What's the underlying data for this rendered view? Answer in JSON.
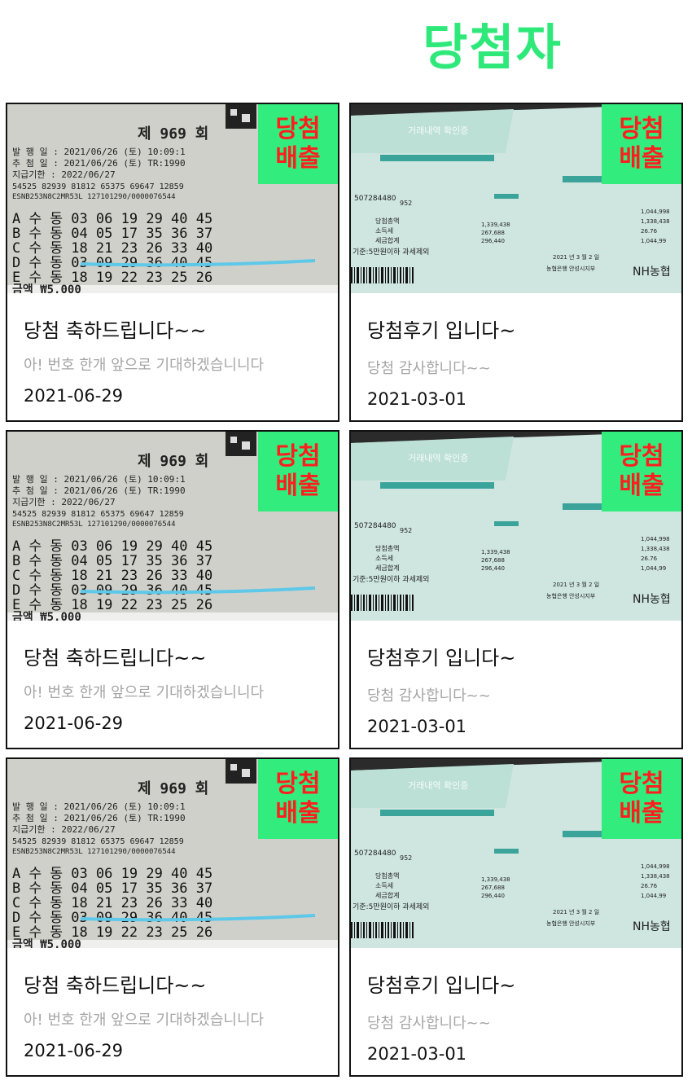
{
  "page": {
    "title": "당첨자"
  },
  "colors": {
    "accent": "#2ee97a",
    "badge_bg": "#33ec7e",
    "badge_text": "#ff1d1d"
  },
  "ticket_text": {
    "round": "제 969 회",
    "issue": "발 행 일 : 2021/06/26 (토) 10:09:1",
    "draw": "추 첨 일 : 2021/06/26 (토) TR:1990",
    "deadline": "지급기한 : 2022/06/27",
    "codes": "54525 82939 81812 65375 69647 12859",
    "code2": "ESNB253N8C2MR53L     127101290/0000076544",
    "rows": [
      "A 수 동 03 06 19 29 40 45",
      "B 수 동 04 05 17 35 36 37",
      "C 수 동 18 21 23 26 33 40",
      "D 수 동 03 09 29 36 40 45",
      "E 수 동 18 19 22 23 25 26"
    ],
    "bottom": "금액        ₩5,000"
  },
  "receipt_text": {
    "header": "거래내역 확인증",
    "num": "952",
    "acct": "507284480",
    "rows": [
      "당첨총액",
      "소득세",
      "세금합계"
    ],
    "vals": [
      "1,339,438",
      "267,688",
      "296,440"
    ],
    "right": [
      "1,044,998",
      "1,338,438",
      "26.76",
      "1,044,99"
    ],
    "note": "기준:5만원이하 과세제외",
    "date": "2021 년 3 월 2 일",
    "bank": "농협은행 안성시지부",
    "logo": "NH농협"
  },
  "cards": [
    {
      "badge_line1": "당첨",
      "badge_line2": "배출",
      "title": "당첨 축하드립니다~~",
      "desc": "아! 번호 한개 앞으로 기대하겠습니니다",
      "date": "2021-06-29"
    },
    {
      "badge_line1": "당첨",
      "badge_line2": "배출",
      "title": "당첨후기 입니다~",
      "desc": "당첨 감사합니다~~",
      "date": "2021-03-01"
    },
    {
      "badge_line1": "당첨",
      "badge_line2": "배출",
      "title": "당첨 축하드립니다~~",
      "desc": "아! 번호 한개 앞으로 기대하겠습니니다",
      "date": "2021-06-29"
    },
    {
      "badge_line1": "당첨",
      "badge_line2": "배출",
      "title": "당첨후기 입니다~",
      "desc": "당첨 감사합니다~~",
      "date": "2021-03-01"
    },
    {
      "badge_line1": "당첨",
      "badge_line2": "배출",
      "title": "당첨 축하드립니다~~",
      "desc": "아! 번호 한개 앞으로 기대하겠습니니다",
      "date": "2021-06-29"
    },
    {
      "badge_line1": "당첨",
      "badge_line2": "배출",
      "title": "당첨후기 입니다~",
      "desc": "당첨 감사합니다~~",
      "date": "2021-03-01"
    }
  ]
}
